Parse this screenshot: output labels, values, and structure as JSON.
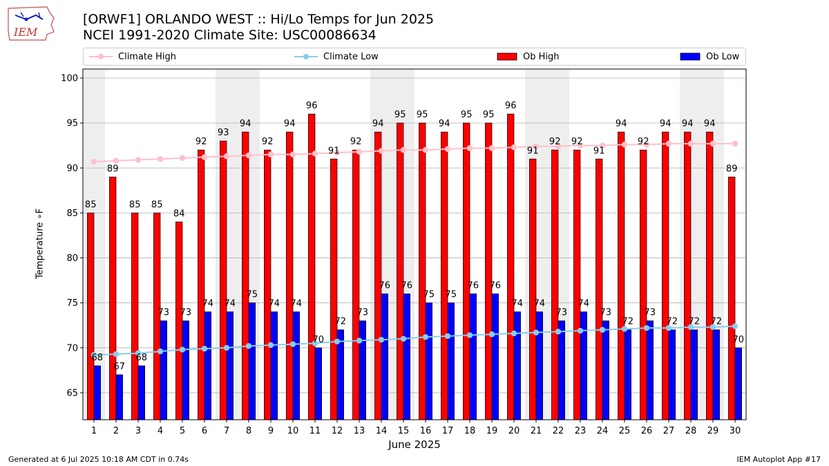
{
  "header": {
    "title": "[ORWF1] ORLANDO WEST :: Hi/Lo Temps for Jun 2025",
    "subtitle": "NCEI 1991-2020 Climate Site: USC00086634",
    "logo_text": "IEM"
  },
  "legend": {
    "items": [
      {
        "label": "Climate High",
        "color": "#ffc0cb",
        "kind": "line"
      },
      {
        "label": "Climate Low",
        "color": "#87ceeb",
        "kind": "line"
      },
      {
        "label": "Ob High",
        "color": "#ff0000",
        "kind": "bar"
      },
      {
        "label": "Ob Low",
        "color": "#0000ff",
        "kind": "bar"
      }
    ]
  },
  "footer": {
    "left": "Generated at 6 Jul 2025 10:18 AM CDT in 0.74s",
    "right": "IEM Autoplot App #17"
  },
  "chart_data": {
    "type": "bar",
    "title": "[ORWF1] ORLANDO WEST :: Hi/Lo Temps for Jun 2025",
    "subtitle": "NCEI 1991-2020 Climate Site: USC00086634",
    "xlabel": "June 2025",
    "ylabel": "Temperature $^\\circ$F",
    "ylabel_display": "Temperature ∘F",
    "ylim": [
      62,
      101
    ],
    "yticks": [
      65,
      70,
      75,
      80,
      85,
      90,
      95,
      100
    ],
    "grid": true,
    "legend_position": "top",
    "categories": [
      "1",
      "2",
      "3",
      "4",
      "5",
      "6",
      "7",
      "8",
      "9",
      "10",
      "11",
      "12",
      "13",
      "14",
      "15",
      "16",
      "17",
      "18",
      "19",
      "20",
      "21",
      "22",
      "23",
      "24",
      "25",
      "26",
      "27",
      "28",
      "29",
      "30"
    ],
    "weekend_shading_days": [
      [
        1,
        1
      ],
      [
        7,
        8
      ],
      [
        14,
        15
      ],
      [
        21,
        22
      ],
      [
        28,
        29
      ]
    ],
    "series": [
      {
        "name": "Ob High",
        "kind": "bar",
        "color": "#ff0000",
        "values": [
          85,
          89,
          85,
          85,
          84,
          92,
          93,
          94,
          92,
          94,
          96,
          91,
          92,
          94,
          95,
          95,
          94,
          95,
          95,
          96,
          91,
          92,
          92,
          91,
          94,
          92,
          94,
          94,
          94,
          89
        ]
      },
      {
        "name": "Ob Low",
        "kind": "bar",
        "color": "#0000ff",
        "values": [
          68,
          67,
          68,
          73,
          73,
          74,
          74,
          75,
          74,
          74,
          70,
          72,
          73,
          76,
          76,
          75,
          75,
          76,
          76,
          74,
          74,
          73,
          74,
          73,
          72,
          73,
          72,
          72,
          72,
          70
        ]
      },
      {
        "name": "Climate High",
        "kind": "line",
        "color": "#ffc0cb",
        "values": [
          90.7,
          90.8,
          90.9,
          91.0,
          91.1,
          91.2,
          91.3,
          91.4,
          91.5,
          91.5,
          91.6,
          91.7,
          91.8,
          91.9,
          92.0,
          92.0,
          92.1,
          92.2,
          92.2,
          92.3,
          92.4,
          92.4,
          92.5,
          92.5,
          92.6,
          92.6,
          92.7,
          92.7,
          92.7,
          92.7
        ]
      },
      {
        "name": "Climate Low",
        "kind": "line",
        "color": "#87ceeb",
        "values": [
          69.2,
          69.3,
          69.4,
          69.6,
          69.8,
          69.9,
          70.0,
          70.2,
          70.3,
          70.4,
          70.5,
          70.7,
          70.8,
          70.9,
          71.0,
          71.2,
          71.3,
          71.4,
          71.5,
          71.6,
          71.7,
          71.8,
          71.9,
          72.0,
          72.1,
          72.2,
          72.2,
          72.3,
          72.3,
          72.4
        ]
      }
    ]
  }
}
